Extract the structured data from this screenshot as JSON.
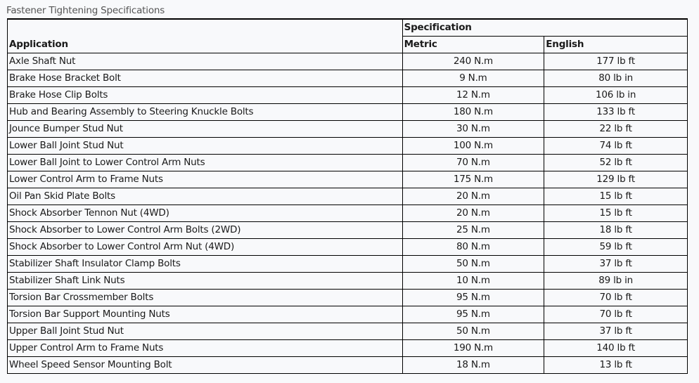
{
  "caption": "Fastener Tightening Specifications",
  "headers": {
    "application": "Application",
    "specification": "Specification",
    "metric": "Metric",
    "english": "English"
  },
  "rows": [
    {
      "application": "Axle Shaft Nut",
      "metric": "240 N.m",
      "english": "177 lb ft"
    },
    {
      "application": "Brake Hose Bracket Bolt",
      "metric": "9 N.m",
      "english": "80 lb in"
    },
    {
      "application": "Brake Hose Clip Bolts",
      "metric": "12 N.m",
      "english": "106 lb in"
    },
    {
      "application": "Hub and Bearing Assembly to Steering Knuckle Bolts",
      "metric": "180 N.m",
      "english": "133 lb ft"
    },
    {
      "application": "Jounce Bumper Stud Nut",
      "metric": "30 N.m",
      "english": "22 lb ft"
    },
    {
      "application": "Lower Ball Joint Stud Nut",
      "metric": "100 N.m",
      "english": "74 lb ft"
    },
    {
      "application": "Lower Ball Joint to Lower Control Arm Nuts",
      "metric": "70 N.m",
      "english": "52 lb ft"
    },
    {
      "application": "Lower Control Arm to Frame Nuts",
      "metric": "175 N.m",
      "english": "129 lb ft"
    },
    {
      "application": "Oil Pan Skid Plate Bolts",
      "metric": "20 N.m",
      "english": "15 lb ft"
    },
    {
      "application": "Shock Absorber Tennon Nut (4WD)",
      "metric": "20 N.m",
      "english": "15 lb ft"
    },
    {
      "application": "Shock Absorber to Lower Control Arm Bolts (2WD)",
      "metric": "25 N.m",
      "english": "18 lb ft"
    },
    {
      "application": "Shock Absorber to Lower Control Arm Nut (4WD)",
      "metric": "80 N.m",
      "english": "59 lb ft"
    },
    {
      "application": "Stabilizer Shaft Insulator Clamp Bolts",
      "metric": "50 N.m",
      "english": "37 lb ft"
    },
    {
      "application": "Stabilizer Shaft Link Nuts",
      "metric": "10 N.m",
      "english": "89 lb in"
    },
    {
      "application": "Torsion Bar Crossmember Bolts",
      "metric": "95 N.m",
      "english": "70 lb ft"
    },
    {
      "application": "Torsion Bar Support Mounting Nuts",
      "metric": "95 N.m",
      "english": "70 lb ft"
    },
    {
      "application": "Upper Ball Joint Stud Nut",
      "metric": "50 N.m",
      "english": "37 lb ft"
    },
    {
      "application": "Upper Control Arm to Frame Nuts",
      "metric": "190 N.m",
      "english": "140 lb ft"
    },
    {
      "application": "Wheel Speed Sensor Mounting Bolt",
      "metric": "18 N.m",
      "english": "13 lb ft"
    }
  ]
}
